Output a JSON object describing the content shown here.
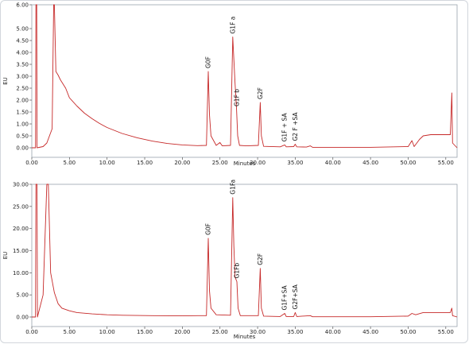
{
  "chart_data": [
    {
      "type": "line",
      "ylabel": "EU",
      "xlabel": "Minutes",
      "xlim": [
        0,
        56.5
      ],
      "ylim": [
        0,
        6
      ],
      "xticks": [
        "0.00",
        "5.00",
        "10.00",
        "15.00",
        "20.00",
        "25.00",
        "30.00",
        "35.00",
        "40.00",
        "45.00",
        "50.00",
        "55.00"
      ],
      "yticks": [
        "0.00",
        "0.50",
        "1.00",
        "1.50",
        "2.00",
        "2.50",
        "3.00",
        "3.50",
        "4.00",
        "4.50",
        "5.00",
        "6.00"
      ],
      "series_color": "#c62828",
      "series": [
        {
          "values": [
            [
              0.0,
              0.0
            ],
            [
              0.5,
              0.0
            ],
            [
              0.55,
              6.0
            ],
            [
              0.65,
              6.0
            ],
            [
              0.7,
              0.0
            ],
            [
              1.5,
              0.05
            ],
            [
              2.0,
              0.2
            ],
            [
              2.7,
              0.8
            ],
            [
              2.9,
              6.0
            ],
            [
              3.0,
              6.0
            ],
            [
              3.2,
              3.2
            ],
            [
              3.5,
              3.05
            ],
            [
              3.8,
              2.85
            ],
            [
              4.5,
              2.5
            ],
            [
              5.0,
              2.1
            ],
            [
              6.0,
              1.75
            ],
            [
              7.0,
              1.45
            ],
            [
              8.0,
              1.22
            ],
            [
              9.0,
              1.02
            ],
            [
              10.0,
              0.85
            ],
            [
              12.0,
              0.6
            ],
            [
              14.0,
              0.42
            ],
            [
              16.0,
              0.28
            ],
            [
              18.0,
              0.18
            ],
            [
              20.0,
              0.12
            ],
            [
              22.0,
              0.09
            ],
            [
              23.2,
              0.1
            ],
            [
              23.45,
              3.2
            ],
            [
              23.6,
              1.4
            ],
            [
              23.8,
              0.5
            ],
            [
              24.5,
              0.1
            ],
            [
              25.0,
              0.22
            ],
            [
              25.3,
              0.08
            ],
            [
              26.4,
              0.1
            ],
            [
              26.7,
              4.65
            ],
            [
              26.85,
              3.7
            ],
            [
              27.0,
              2.7
            ],
            [
              27.2,
              1.6
            ],
            [
              27.35,
              0.5
            ],
            [
              27.6,
              0.1
            ],
            [
              28.5,
              0.08
            ],
            [
              30.1,
              0.1
            ],
            [
              30.35,
              1.9
            ],
            [
              30.5,
              0.5
            ],
            [
              30.8,
              0.06
            ],
            [
              33.0,
              0.04
            ],
            [
              33.6,
              0.12
            ],
            [
              33.8,
              0.04
            ],
            [
              34.8,
              0.05
            ],
            [
              35.0,
              0.15
            ],
            [
              35.2,
              0.04
            ],
            [
              36.5,
              0.03
            ],
            [
              37.0,
              0.08
            ],
            [
              37.3,
              0.02
            ],
            [
              40.0,
              0.02
            ],
            [
              45.0,
              0.02
            ],
            [
              50.0,
              0.05
            ],
            [
              50.5,
              0.3
            ],
            [
              50.8,
              0.05
            ],
            [
              51.5,
              0.35
            ],
            [
              52.0,
              0.5
            ],
            [
              53.0,
              0.55
            ],
            [
              55.6,
              0.55
            ],
            [
              55.8,
              2.3
            ],
            [
              55.9,
              0.2
            ],
            [
              56.5,
              0.0
            ]
          ]
        }
      ],
      "annotations": [
        {
          "label": "G0F",
          "x": 23.45,
          "y": 3.2
        },
        {
          "label": "G1F a",
          "x": 26.7,
          "y": 4.65
        },
        {
          "label": "G1F b",
          "x": 27.25,
          "y": 1.6
        },
        {
          "label": "G2F",
          "x": 30.35,
          "y": 1.9
        },
        {
          "label": "G1F + SA",
          "x": 33.6,
          "y": 0.12
        },
        {
          "label": "G2 F +SA",
          "x": 35.0,
          "y": 0.15
        }
      ]
    },
    {
      "type": "line",
      "ylabel": "EU",
      "xlabel": "Minutes",
      "xlim": [
        0,
        56.5
      ],
      "ylim": [
        0,
        30
      ],
      "xticks": [
        "0.00",
        "5.00",
        "10.00",
        "15.00",
        "20.00",
        "25.00",
        "30.00",
        "35.00",
        "40.00",
        "45.00",
        "50.00",
        "55.00"
      ],
      "yticks": [
        "0.00",
        "5.00",
        "10.00",
        "15.00",
        "20.00",
        "25.00",
        "30.00"
      ],
      "series_color": "#c62828",
      "series": [
        {
          "values": [
            [
              0.0,
              0.0
            ],
            [
              0.5,
              0.0
            ],
            [
              0.55,
              30.0
            ],
            [
              0.7,
              30.0
            ],
            [
              0.75,
              0.0
            ],
            [
              1.5,
              5.0
            ],
            [
              2.0,
              30.0
            ],
            [
              2.2,
              30.0
            ],
            [
              2.5,
              10.0
            ],
            [
              3.0,
              5.5
            ],
            [
              3.5,
              3.0
            ],
            [
              4.0,
              2.0
            ],
            [
              5.0,
              1.4
            ],
            [
              6.0,
              1.0
            ],
            [
              8.0,
              0.7
            ],
            [
              10.0,
              0.5
            ],
            [
              12.0,
              0.4
            ],
            [
              14.0,
              0.35
            ],
            [
              16.0,
              0.3
            ],
            [
              18.0,
              0.28
            ],
            [
              20.0,
              0.25
            ],
            [
              22.0,
              0.3
            ],
            [
              23.2,
              0.3
            ],
            [
              23.45,
              17.8
            ],
            [
              23.6,
              6.0
            ],
            [
              23.8,
              2.0
            ],
            [
              24.5,
              0.5
            ],
            [
              26.4,
              0.4
            ],
            [
              26.7,
              27.0
            ],
            [
              26.85,
              16.0
            ],
            [
              27.0,
              9.0
            ],
            [
              27.25,
              8.0
            ],
            [
              27.4,
              2.0
            ],
            [
              27.7,
              0.3
            ],
            [
              30.1,
              0.3
            ],
            [
              30.35,
              11.0
            ],
            [
              30.5,
              2.0
            ],
            [
              30.8,
              0.2
            ],
            [
              33.0,
              0.1
            ],
            [
              33.6,
              0.8
            ],
            [
              33.8,
              0.1
            ],
            [
              34.8,
              0.1
            ],
            [
              35.0,
              1.0
            ],
            [
              35.2,
              0.1
            ],
            [
              37.0,
              0.3
            ],
            [
              37.3,
              0.05
            ],
            [
              40.0,
              0.05
            ],
            [
              45.0,
              0.05
            ],
            [
              50.0,
              0.2
            ],
            [
              50.5,
              0.8
            ],
            [
              51.0,
              0.5
            ],
            [
              52.0,
              1.0
            ],
            [
              55.6,
              1.0
            ],
            [
              55.8,
              2.0
            ],
            [
              55.9,
              0.3
            ],
            [
              56.5,
              0.0
            ]
          ]
        }
      ],
      "annotations": [
        {
          "label": "G0F",
          "x": 23.45,
          "y": 17.8
        },
        {
          "label": "G1Fa",
          "x": 26.7,
          "y": 27.0
        },
        {
          "label": "G1Fb",
          "x": 27.25,
          "y": 8.0
        },
        {
          "label": "G2F",
          "x": 30.35,
          "y": 11.0
        },
        {
          "label": "G1F+SA",
          "x": 33.6,
          "y": 0.8
        },
        {
          "label": "G2F+SA",
          "x": 35.0,
          "y": 1.0
        }
      ]
    }
  ]
}
